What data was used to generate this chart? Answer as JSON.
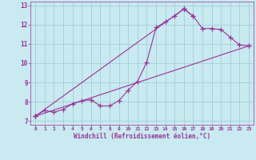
{
  "xlabel": "Windchill (Refroidissement éolien,°C)",
  "xlim": [
    -0.5,
    23.5
  ],
  "ylim": [
    6.8,
    13.2
  ],
  "bg_color": "#c8eaf0",
  "line_color": "#993399",
  "grid_color": "#a0c8d8",
  "line1_x": [
    0,
    1,
    2,
    3,
    4,
    5,
    6,
    7,
    8,
    9,
    10,
    11,
    12,
    13,
    14,
    15,
    16,
    17
  ],
  "line1_y": [
    7.25,
    7.55,
    7.45,
    7.6,
    7.9,
    8.05,
    8.1,
    7.78,
    7.78,
    8.05,
    8.6,
    9.05,
    10.05,
    11.85,
    12.15,
    12.45,
    12.82,
    12.45
  ],
  "line2_x": [
    0,
    16
  ],
  "line2_y": [
    7.25,
    12.82
  ],
  "line3_x": [
    16,
    17,
    18,
    19,
    20,
    21,
    22,
    23
  ],
  "line3_y": [
    12.82,
    12.45,
    11.8,
    11.8,
    11.75,
    11.35,
    10.95,
    10.9
  ],
  "line4_x": [
    0,
    23
  ],
  "line4_y": [
    7.25,
    10.9
  ],
  "xticks": [
    0,
    1,
    2,
    3,
    4,
    5,
    6,
    7,
    8,
    9,
    10,
    11,
    12,
    13,
    14,
    15,
    16,
    17,
    18,
    19,
    20,
    21,
    22,
    23
  ],
  "yticks": [
    7,
    8,
    9,
    10,
    11,
    12,
    13
  ],
  "marker": "+",
  "marker_size": 4,
  "linewidth": 0.8
}
